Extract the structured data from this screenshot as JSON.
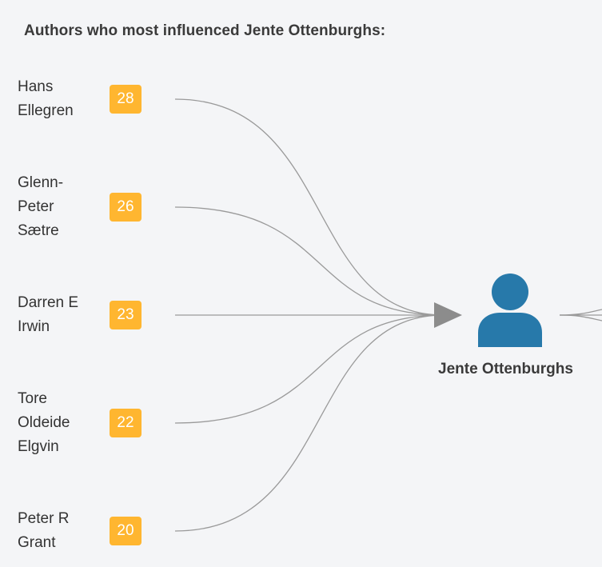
{
  "title": "Authors who most influenced Jente Ottenburghs:",
  "target": {
    "name": "Jente Ottenburghs",
    "icon": "person-icon",
    "icon_color": "#2779aa"
  },
  "authors": [
    {
      "name": "Hans\nEllegren",
      "count": "28"
    },
    {
      "name": "Glenn-\nPeter\nSætre",
      "count": "26"
    },
    {
      "name": "Darren E\nIrwin",
      "count": "23"
    },
    {
      "name": "Tore\nOldeide\nElgvin",
      "count": "22"
    },
    {
      "name": "Peter R\nGrant",
      "count": "20"
    }
  ],
  "colors": {
    "badge": "#ffb630",
    "edge": "#9a9a9a",
    "arrow": "#8c8c8c"
  }
}
